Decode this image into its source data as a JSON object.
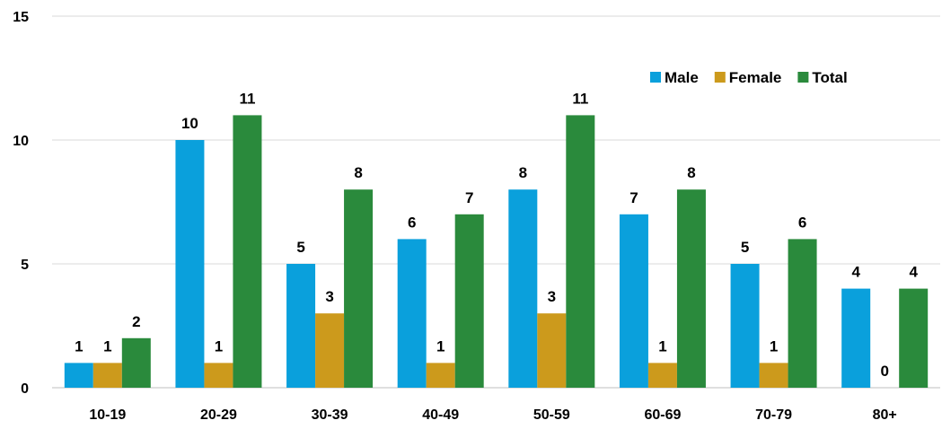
{
  "chart_data": {
    "type": "bar",
    "title": "",
    "xlabel": "",
    "ylabel": "",
    "categories": [
      "10-19",
      "20-29",
      "30-39",
      "40-49",
      "50-59",
      "60-69",
      "70-79",
      "80+"
    ],
    "series": [
      {
        "name": "Male",
        "color": "#0AA0DC",
        "values": [
          1,
          10,
          5,
          6,
          8,
          7,
          5,
          4
        ]
      },
      {
        "name": "Female",
        "color": "#CC9A1C",
        "values": [
          1,
          1,
          3,
          1,
          3,
          1,
          1,
          0
        ]
      },
      {
        "name": "Total",
        "color": "#2A8A3C",
        "values": [
          2,
          11,
          8,
          7,
          11,
          8,
          6,
          4
        ]
      }
    ],
    "ylim": [
      0,
      15
    ],
    "yticks": [
      0,
      5,
      10,
      15
    ],
    "ytick_labels": [
      "0",
      "5",
      "10",
      "15"
    ],
    "grid": true,
    "data_labels": true,
    "legend_position": "top-right"
  }
}
